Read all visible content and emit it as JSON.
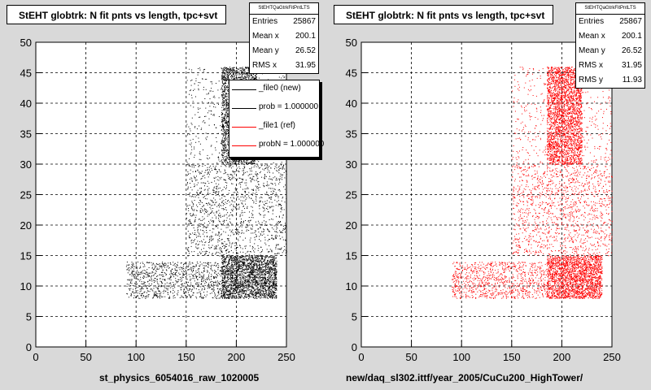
{
  "chart_data": [
    {
      "type": "scatter",
      "title": "StEHT globtrk: N fit pnts vs length, tpc+svt",
      "xlabel": "st_physics_6054016_raw_1020005",
      "xlim": [
        0,
        250
      ],
      "ylim": [
        0,
        50
      ],
      "xticks": [
        "0",
        "50",
        "100",
        "150",
        "200",
        "250"
      ],
      "yticks": [
        "0",
        "5",
        "10",
        "15",
        "20",
        "25",
        "30",
        "35",
        "40",
        "45",
        "50"
      ],
      "grid": true,
      "marker_color": "#000000",
      "stats": {
        "name": "StEHTQaGtrkFitPntLTS",
        "rows": [
          [
            "Entries",
            "25867"
          ],
          [
            "Mean x",
            "200.1"
          ],
          [
            "Mean y",
            "26.52"
          ],
          [
            "RMS x",
            "31.95"
          ]
        ]
      },
      "legend": [
        {
          "label": "_file0 (new)",
          "color": "#000000"
        },
        {
          "label": "prob = 1.000000",
          "color": "#000000"
        },
        {
          "label": "_file1 (ref)",
          "color": "#ff0000"
        },
        {
          "label": "probN = 1.000000",
          "color": "#ff0000"
        }
      ],
      "density_regions": [
        {
          "x": [
            185,
            220
          ],
          "y": [
            30,
            46
          ],
          "weight": 6
        },
        {
          "x": [
            185,
            240
          ],
          "y": [
            8,
            15
          ],
          "weight": 5
        },
        {
          "x": [
            150,
            250
          ],
          "y": [
            15,
            30
          ],
          "weight": 3
        },
        {
          "x": [
            90,
            185
          ],
          "y": [
            8,
            14
          ],
          "weight": 2
        },
        {
          "x": [
            150,
            250
          ],
          "y": [
            30,
            46
          ],
          "weight": 1
        }
      ]
    },
    {
      "type": "scatter",
      "title": "StEHT globtrk: N fit pnts vs length, tpc+svt",
      "xlabel": "new/daq_sl302.ittf/year_2005/CuCu200_HighTower/",
      "xlim": [
        0,
        250
      ],
      "ylim": [
        0,
        50
      ],
      "xticks": [
        "0",
        "50",
        "100",
        "150",
        "200",
        "250"
      ],
      "yticks": [
        "0",
        "5",
        "10",
        "15",
        "20",
        "25",
        "30",
        "35",
        "40",
        "45",
        "50"
      ],
      "grid": true,
      "marker_color": "#ff0000",
      "stats": {
        "name": "StEHTQaGtrkFitPntLTS",
        "rows": [
          [
            "Entries",
            "25867"
          ],
          [
            "Mean x",
            "200.1"
          ],
          [
            "Mean y",
            "26.52"
          ],
          [
            "RMS x",
            "31.95"
          ],
          [
            "RMS y",
            "11.93"
          ]
        ]
      },
      "density_regions": [
        {
          "x": [
            185,
            220
          ],
          "y": [
            30,
            46
          ],
          "weight": 6
        },
        {
          "x": [
            185,
            240
          ],
          "y": [
            8,
            15
          ],
          "weight": 5
        },
        {
          "x": [
            150,
            250
          ],
          "y": [
            15,
            30
          ],
          "weight": 3
        },
        {
          "x": [
            90,
            185
          ],
          "y": [
            8,
            14
          ],
          "weight": 2
        },
        {
          "x": [
            150,
            250
          ],
          "y": [
            30,
            46
          ],
          "weight": 1
        }
      ]
    }
  ]
}
